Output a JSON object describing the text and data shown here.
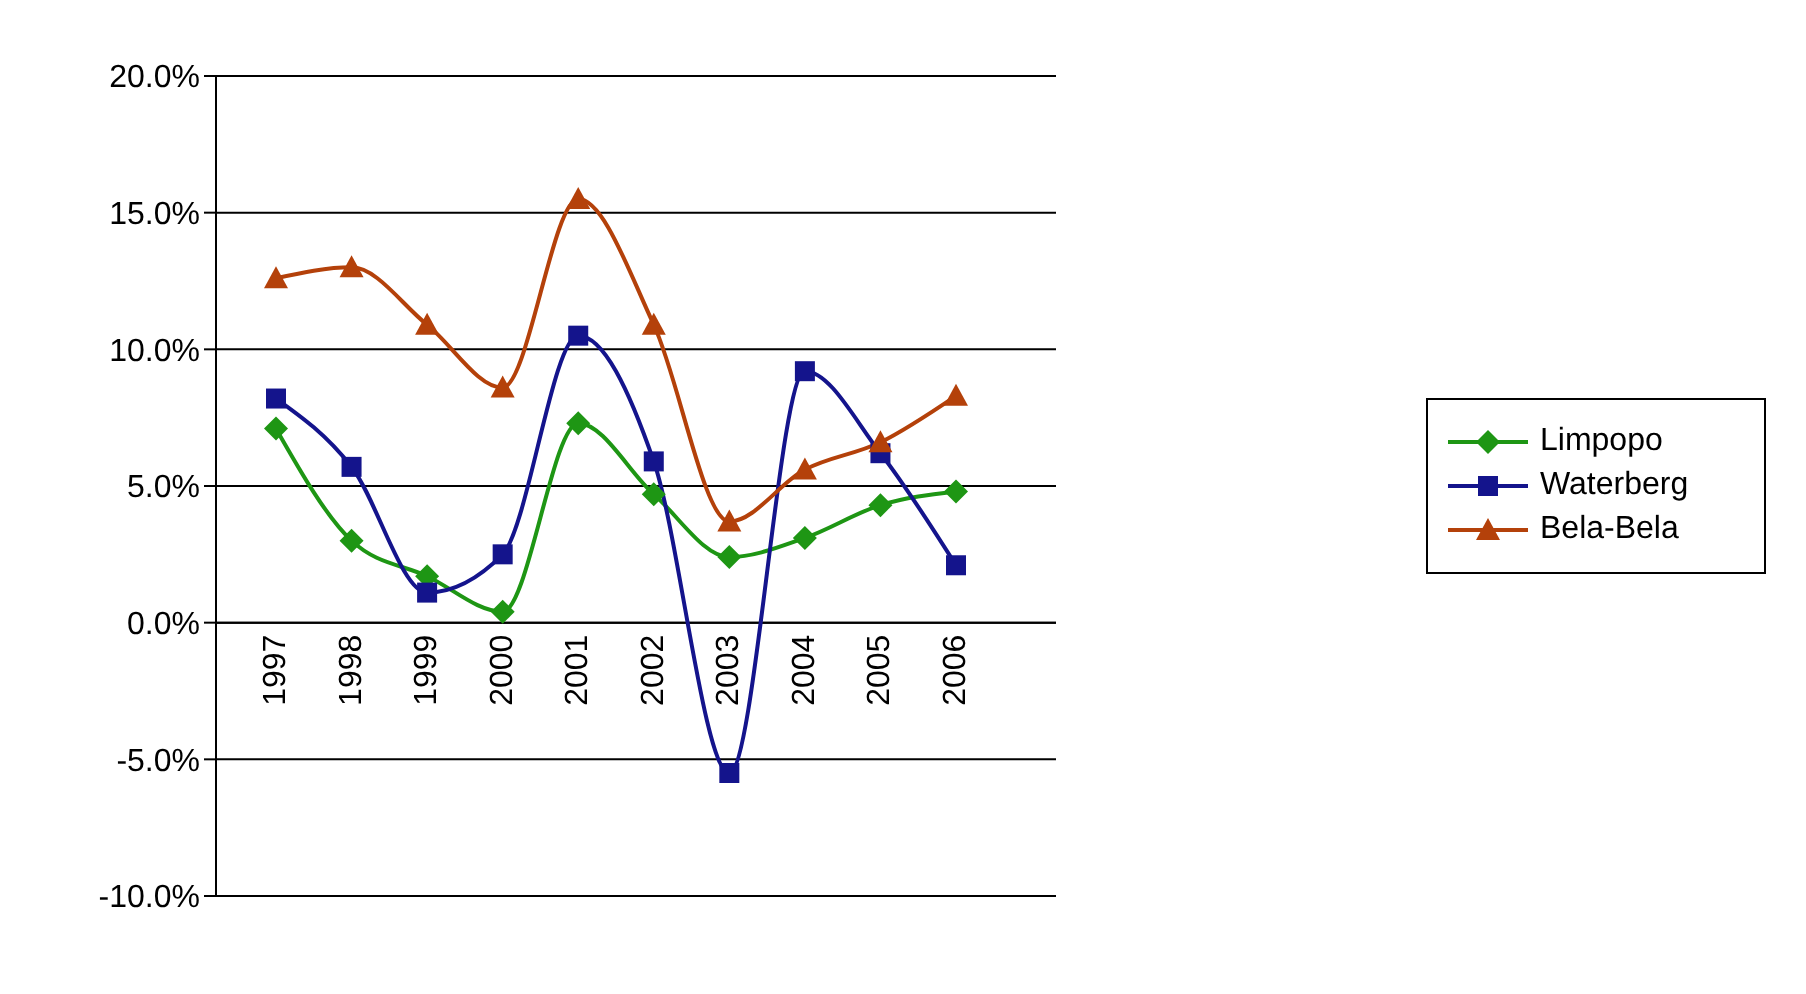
{
  "chart_data": {
    "type": "line",
    "categories": [
      "1997",
      "1998",
      "1999",
      "2000",
      "2001",
      "2002",
      "2003",
      "2004",
      "2005",
      "2006"
    ],
    "series": [
      {
        "name": "Limpopo",
        "color": "#1e9614",
        "marker": "diamond",
        "values": [
          7.1,
          3.0,
          1.7,
          0.4,
          7.3,
          4.7,
          2.4,
          3.1,
          4.3,
          4.8
        ]
      },
      {
        "name": "Waterberg",
        "color": "#14148c",
        "marker": "square",
        "values": [
          8.2,
          5.7,
          1.1,
          2.5,
          10.5,
          5.9,
          -5.5,
          9.2,
          6.2,
          2.1
        ]
      },
      {
        "name": "Bela-Bela",
        "color": "#b4410a",
        "marker": "triangle",
        "values": [
          12.6,
          13.0,
          10.9,
          8.6,
          15.5,
          10.9,
          3.7,
          5.6,
          6.6,
          8.3
        ]
      }
    ],
    "ylim": [
      -10,
      20
    ],
    "yticks": [
      {
        "value": -10,
        "label": "-10.0%"
      },
      {
        "value": -5,
        "label": "-5.0%"
      },
      {
        "value": 0,
        "label": "0.0%"
      },
      {
        "value": 5,
        "label": "5.0%"
      },
      {
        "value": 10,
        "label": "10.0%"
      },
      {
        "value": 15,
        "label": "15.0%"
      },
      {
        "value": 20,
        "label": "20.0%"
      }
    ],
    "grid": "y",
    "legend": "right",
    "line_style": "solid"
  }
}
